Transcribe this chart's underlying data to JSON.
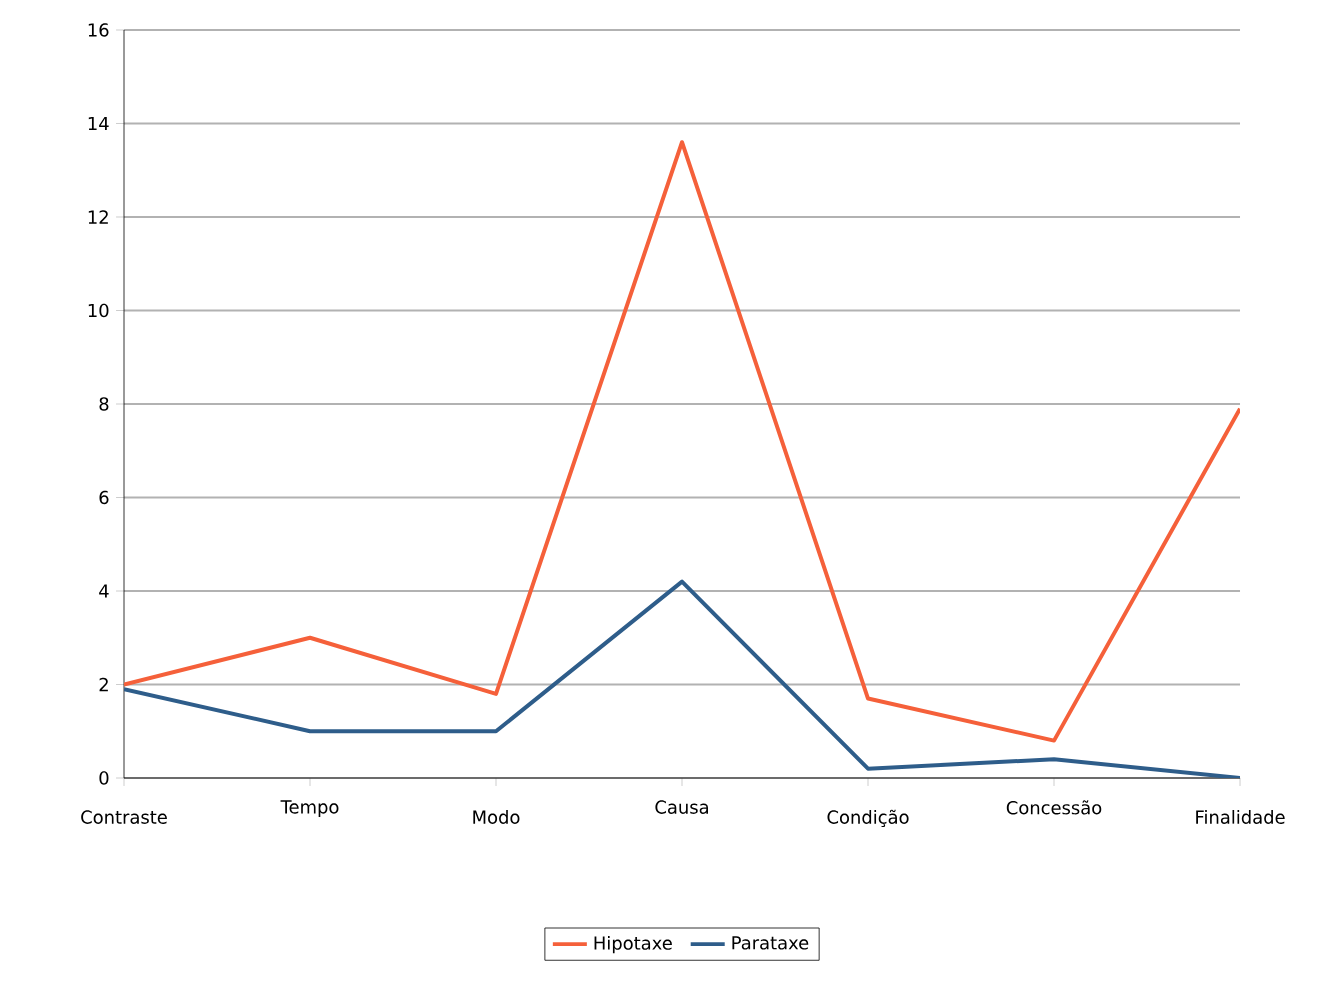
{
  "chart_data": {
    "type": "line",
    "categories": [
      "Contraste",
      "Tempo",
      "Modo",
      "Causa",
      "Condição",
      "Concessão",
      "Finalidade"
    ],
    "series": [
      {
        "name": "Hipotaxe",
        "color": "#f5603a",
        "values": [
          2.0,
          3.0,
          1.8,
          13.6,
          1.7,
          0.8,
          7.9
        ]
      },
      {
        "name": "Parataxe",
        "color": "#2e5d8a",
        "values": [
          1.9,
          1.0,
          1.0,
          4.2,
          0.2,
          0.4,
          0.0
        ]
      }
    ],
    "ylim": [
      0,
      16
    ],
    "yticks": [
      0,
      2,
      4,
      6,
      8,
      10,
      12,
      14,
      16
    ],
    "grid": "y",
    "legend": "bottom"
  }
}
